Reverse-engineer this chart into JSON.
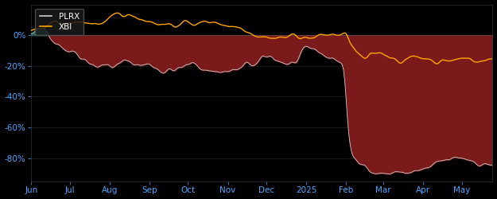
{
  "background_color": "#000000",
  "plot_bg_color": "#000000",
  "xbi_color": "#FFA500",
  "plrx_color": "#CCCCCC",
  "fill_above_color": "#1a6b5a",
  "fill_below_color": "#7a1a1a",
  "legend_bg": "#1a1a1a",
  "legend_edge": "#555555",
  "tick_color": "#4da6ff",
  "grid_color": "#2a2a2a",
  "zero_line_color": "#555555",
  "ylim": [
    -95,
    20
  ],
  "yticks": [
    0,
    -20,
    -40,
    -60,
    -80
  ],
  "ytick_labels": [
    "0%",
    "-20%",
    "-40%",
    "-60%",
    "-80%"
  ],
  "months": [
    "Jun",
    "Jul",
    "Aug",
    "Sep",
    "Oct",
    "Nov",
    "Dec",
    "2025",
    "Feb",
    "Mar",
    "Apr",
    "May"
  ],
  "month_positions": [
    0,
    30,
    61,
    92,
    122,
    153,
    183,
    214,
    245,
    274,
    305,
    335
  ],
  "n_points": 360
}
